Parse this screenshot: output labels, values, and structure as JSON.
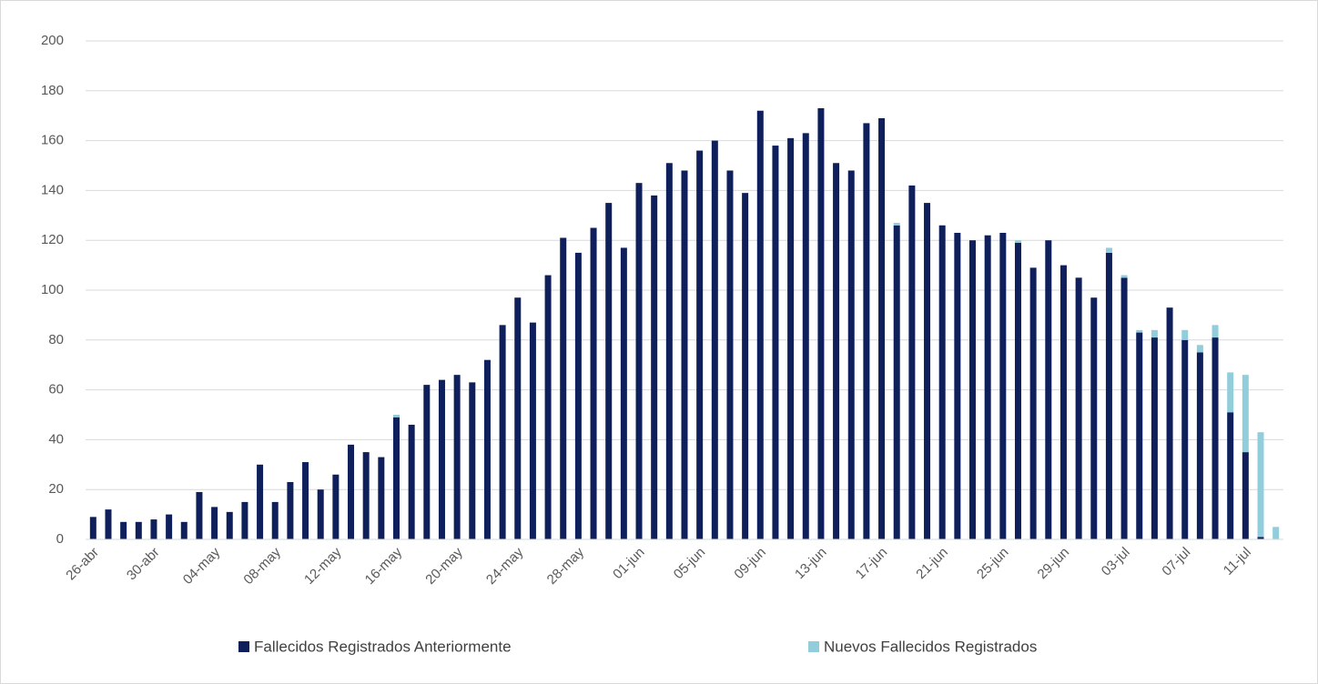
{
  "chart_data": {
    "type": "bar",
    "stacked": true,
    "categories": [
      "26-abr",
      null,
      null,
      null,
      "30-abr",
      null,
      null,
      null,
      "04-may",
      null,
      null,
      null,
      "08-may",
      null,
      null,
      null,
      "12-may",
      null,
      null,
      null,
      "16-may",
      null,
      null,
      null,
      "20-may",
      null,
      null,
      null,
      "24-may",
      null,
      null,
      null,
      "28-may",
      null,
      null,
      null,
      "01-jun",
      null,
      null,
      null,
      "05-jun",
      null,
      null,
      null,
      "09-jun",
      null,
      null,
      null,
      "13-jun",
      null,
      null,
      null,
      "17-jun",
      null,
      null,
      null,
      "21-jun",
      null,
      null,
      null,
      "25-jun",
      null,
      null,
      null,
      "29-jun",
      null,
      null,
      null,
      "03-jul",
      null,
      null,
      null,
      "07-jul",
      null,
      null,
      null,
      "11-jul",
      null,
      null
    ],
    "series": [
      {
        "name": "Fallecidos Registrados Anteriormente",
        "color": "#0e1f5b",
        "values": [
          9,
          12,
          7,
          7,
          8,
          10,
          7,
          19,
          13,
          11,
          15,
          30,
          15,
          23,
          31,
          20,
          26,
          38,
          35,
          33,
          49,
          46,
          62,
          64,
          66,
          63,
          72,
          86,
          97,
          87,
          106,
          121,
          115,
          125,
          135,
          117,
          143,
          138,
          151,
          148,
          156,
          160,
          148,
          139,
          172,
          158,
          161,
          163,
          173,
          151,
          148,
          167,
          169,
          126,
          142,
          135,
          126,
          123,
          120,
          122,
          123,
          119,
          109,
          120,
          110,
          105,
          97,
          115,
          105,
          83,
          81,
          93,
          80,
          75,
          81,
          51,
          35,
          1,
          0
        ]
      },
      {
        "name": "Nuevos Fallecidos Registrados",
        "color": "#92cddc",
        "values": [
          0,
          0,
          0,
          0,
          0,
          0,
          0,
          0,
          0,
          0,
          0,
          0,
          0,
          0,
          0,
          0,
          0,
          0,
          0,
          0,
          1,
          0,
          0,
          0,
          0,
          0,
          0,
          0,
          0,
          0,
          0,
          0,
          0,
          0,
          0,
          0,
          0,
          0,
          0,
          0,
          0,
          0,
          0,
          0,
          0,
          0,
          0,
          0,
          0,
          0,
          0,
          0,
          0,
          1,
          0,
          0,
          0,
          0,
          0,
          0,
          0,
          1,
          0,
          0,
          0,
          0,
          0,
          2,
          1,
          1,
          3,
          0,
          4,
          3,
          5,
          16,
          31,
          42,
          5
        ]
      }
    ],
    "ylim": [
      0,
      200
    ],
    "yticks": [
      0,
      20,
      40,
      60,
      80,
      100,
      120,
      140,
      160,
      180,
      200
    ],
    "grid": true,
    "legend": "bottom"
  }
}
